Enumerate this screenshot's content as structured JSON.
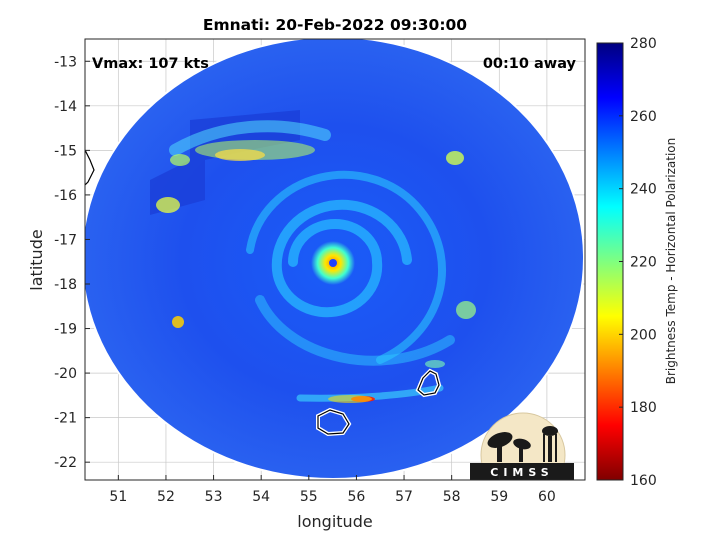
{
  "chart_data": {
    "type": "heatmap",
    "title": "Emnati: 20-Feb-2022 09:30:00",
    "xlabel": "longitude",
    "ylabel": "latitude",
    "xlim": [
      50.3,
      60.8
    ],
    "ylim": [
      -22.4,
      -12.5
    ],
    "xticks": [
      51,
      52,
      53,
      54,
      55,
      56,
      57,
      58,
      59,
      60
    ],
    "yticks": [
      -13,
      -14,
      -15,
      -16,
      -17,
      -18,
      -19,
      -20,
      -21,
      -22
    ],
    "grid": true,
    "colorbar": {
      "label": "Brightness Temp - Horizontal Polarization",
      "range": [
        160,
        280
      ],
      "ticks": [
        280,
        260,
        240,
        220,
        200,
        180,
        160
      ],
      "colormap": "jet"
    },
    "storm_center": {
      "lon": 55.6,
      "lat": -17.5
    },
    "annotations": {
      "vmax": "Vmax: 107 kts",
      "time_offset": "00:10 away"
    }
  },
  "logo": {
    "text": "CIMSS"
  },
  "colors": {
    "background_field": "#1e4ef0",
    "swath_edge": "#ffffff",
    "coastline": "#000000"
  }
}
